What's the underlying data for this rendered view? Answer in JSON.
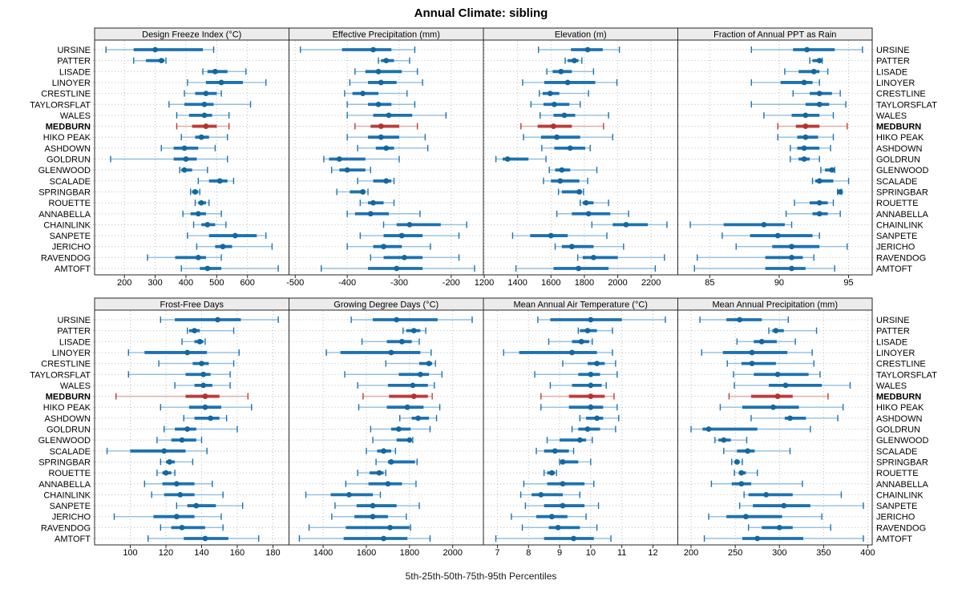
{
  "title": "Annual Climate: sibling",
  "footer": "5th-25th-50th-75th-95th Percentiles",
  "percentiles": [
    5,
    25,
    50,
    75,
    95
  ],
  "highlight_station": "MEDBURN",
  "stations": [
    "URSINE",
    "PATTER",
    "LISADE",
    "LINOYER",
    "CRESTLINE",
    "TAYLORSFLAT",
    "WALES",
    "MEDBURN",
    "HIKO PEAK",
    "ASHDOWN",
    "GOLDRUN",
    "GLENWOOD",
    "SCALADE",
    "SPRINGBAR",
    "ROUETTE",
    "ANNABELLA",
    "CHAINLINK",
    "SANPETE",
    "JERICHO",
    "RAVENDOG",
    "AMTOFT"
  ],
  "colors": {
    "series_blue": "#1D72B0",
    "series_blue_light": "#92BFDF",
    "series_blue_dot": "#14679F",
    "highlight_red": "#BC3C39",
    "highlight_red_light": "#E2A6A4",
    "highlight_red_dot": "#B23230",
    "grid": "#BDBDBD",
    "panel_border": "#262626",
    "header_bg": "#ECECEC",
    "text": "#000000"
  },
  "chart_data": [
    {
      "type": "percentile-dotplot",
      "row": 0,
      "col": 0,
      "title": "Design Freeze Index (°C)",
      "xmin": 103,
      "xmax": 735,
      "ticks": [
        200,
        300,
        400,
        500,
        600
      ],
      "values": [
        [
          140,
          230,
          300,
          455,
          490
        ],
        [
          230,
          270,
          320,
          330,
          335
        ],
        [
          455,
          470,
          495,
          535,
          595
        ],
        [
          405,
          465,
          515,
          585,
          660
        ],
        [
          395,
          430,
          465,
          500,
          515
        ],
        [
          345,
          395,
          460,
          490,
          610
        ],
        [
          370,
          410,
          460,
          485,
          540
        ],
        [
          370,
          420,
          465,
          500,
          540
        ],
        [
          385,
          430,
          450,
          475,
          535
        ],
        [
          320,
          360,
          395,
          440,
          495
        ],
        [
          155,
          360,
          400,
          435,
          535
        ],
        [
          380,
          385,
          395,
          420,
          470
        ],
        [
          440,
          475,
          510,
          535,
          555
        ],
        [
          415,
          420,
          430,
          440,
          445
        ],
        [
          430,
          440,
          450,
          465,
          475
        ],
        [
          390,
          415,
          440,
          465,
          515
        ],
        [
          425,
          450,
          470,
          495,
          530
        ],
        [
          405,
          475,
          560,
          630,
          660
        ],
        [
          435,
          495,
          520,
          550,
          680
        ],
        [
          275,
          365,
          440,
          465,
          515
        ],
        [
          385,
          445,
          470,
          515,
          700
        ]
      ]
    },
    {
      "type": "percentile-dotplot",
      "row": 0,
      "col": 1,
      "title": "Effective Precipitation (mm)",
      "xmin": -512,
      "xmax": -138,
      "ticks": [
        -500,
        -400,
        -300,
        -200
      ],
      "values": [
        [
          -490,
          -410,
          -350,
          -315,
          -270
        ],
        [
          -340,
          -335,
          -325,
          -310,
          -280
        ],
        [
          -385,
          -365,
          -340,
          -295,
          -265
        ],
        [
          -395,
          -360,
          -335,
          -305,
          -255
        ],
        [
          -405,
          -390,
          -370,
          -340,
          -285
        ],
        [
          -400,
          -360,
          -340,
          -315,
          -270
        ],
        [
          -400,
          -350,
          -320,
          -275,
          -210
        ],
        [
          -385,
          -355,
          -335,
          -300,
          -265
        ],
        [
          -400,
          -360,
          -335,
          -300,
          -250
        ],
        [
          -380,
          -345,
          -325,
          -310,
          -245
        ],
        [
          -445,
          -435,
          -415,
          -365,
          -300
        ],
        [
          -430,
          -415,
          -400,
          -365,
          -355
        ],
        [
          -380,
          -350,
          -325,
          -315,
          -310
        ],
        [
          -420,
          -395,
          -370,
          -365,
          -360
        ],
        [
          -375,
          -360,
          -350,
          -330,
          -310
        ],
        [
          -400,
          -385,
          -355,
          -320,
          -260
        ],
        [
          -330,
          -305,
          -280,
          -220,
          -170
        ],
        [
          -375,
          -330,
          -295,
          -255,
          -185
        ],
        [
          -400,
          -350,
          -330,
          -295,
          -240
        ],
        [
          -355,
          -330,
          -290,
          -255,
          -185
        ],
        [
          -450,
          -360,
          -305,
          -255,
          -155
        ]
      ]
    },
    {
      "type": "percentile-dotplot",
      "row": 0,
      "col": 2,
      "title": "Elevation (m)",
      "xmin": 1195,
      "xmax": 2360,
      "ticks": [
        1200,
        1400,
        1600,
        1800,
        2000,
        2200
      ],
      "values": [
        [
          1525,
          1720,
          1820,
          1910,
          2010
        ],
        [
          1685,
          1700,
          1740,
          1765,
          1785
        ],
        [
          1575,
          1610,
          1660,
          1725,
          1855
        ],
        [
          1430,
          1560,
          1700,
          1865,
          1995
        ],
        [
          1530,
          1550,
          1595,
          1650,
          1825
        ],
        [
          1480,
          1555,
          1620,
          1710,
          1775
        ],
        [
          1535,
          1615,
          1680,
          1745,
          1945
        ],
        [
          1420,
          1520,
          1615,
          1725,
          1915
        ],
        [
          1435,
          1540,
          1635,
          1775,
          1970
        ],
        [
          1545,
          1620,
          1715,
          1805,
          1835
        ],
        [
          1270,
          1310,
          1340,
          1465,
          1570
        ],
        [
          1590,
          1625,
          1665,
          1715,
          1875
        ],
        [
          1555,
          1600,
          1655,
          1770,
          1820
        ],
        [
          1645,
          1665,
          1770,
          1785,
          1795
        ],
        [
          1775,
          1790,
          1810,
          1855,
          1945
        ],
        [
          1635,
          1725,
          1825,
          1955,
          2065
        ],
        [
          1845,
          1970,
          2050,
          2180,
          2295
        ],
        [
          1370,
          1475,
          1600,
          1700,
          1935
        ],
        [
          1625,
          1665,
          1725,
          1855,
          2035
        ],
        [
          1760,
          1790,
          1855,
          2000,
          2280
        ],
        [
          1390,
          1615,
          1765,
          1945,
          2225
        ]
      ]
    },
    {
      "type": "percentile-dotplot",
      "row": 0,
      "col": 3,
      "title": "Fraction of Annual PPT as Rain",
      "xmin": 82.7,
      "xmax": 96.7,
      "ticks": [
        85,
        90,
        95
      ],
      "values": [
        [
          88.0,
          91.0,
          92.0,
          94.0,
          96.0
        ],
        [
          92.2,
          92.4,
          92.9,
          93.0,
          93.1
        ],
        [
          90.4,
          91.4,
          92.5,
          92.9,
          93.5
        ],
        [
          88.0,
          90.1,
          91.8,
          92.4,
          92.9
        ],
        [
          91.0,
          92.2,
          92.9,
          93.8,
          94.4
        ],
        [
          88.0,
          91.9,
          92.9,
          93.6,
          94.8
        ],
        [
          88.9,
          90.9,
          91.9,
          92.9,
          93.9
        ],
        [
          89.9,
          91.2,
          91.9,
          92.9,
          94.9
        ],
        [
          89.9,
          91.3,
          91.9,
          92.8,
          93.9
        ],
        [
          90.8,
          91.3,
          91.8,
          92.9,
          93.7
        ],
        [
          90.8,
          91.4,
          91.8,
          92.2,
          92.9
        ],
        [
          93.0,
          93.3,
          93.8,
          93.9,
          94.0
        ],
        [
          92.4,
          92.6,
          92.9,
          93.9,
          95.0
        ],
        [
          94.2,
          94.3,
          94.4,
          94.5,
          94.5
        ],
        [
          91.1,
          92.2,
          92.9,
          93.5,
          93.9
        ],
        [
          90.5,
          92.4,
          92.9,
          93.5,
          94.4
        ],
        [
          83.6,
          86.0,
          88.9,
          90.4,
          90.9
        ],
        [
          85.9,
          87.9,
          89.9,
          92.4,
          92.9
        ],
        [
          86.9,
          89.5,
          90.9,
          92.9,
          94.9
        ],
        [
          84.1,
          89.0,
          90.9,
          91.7,
          92.5
        ],
        [
          83.9,
          89.0,
          90.9,
          91.9,
          94.0
        ]
      ]
    },
    {
      "type": "percentile-dotplot",
      "row": 1,
      "col": 0,
      "title": "Frost-Free Days",
      "xmin": 80,
      "xmax": 189,
      "ticks": [
        100,
        120,
        140,
        160,
        180
      ],
      "values": [
        [
          117,
          125,
          149,
          162,
          183
        ],
        [
          132,
          133,
          136,
          139,
          158
        ],
        [
          129,
          136,
          139,
          141,
          142
        ],
        [
          99,
          108,
          132,
          143,
          161
        ],
        [
          116,
          135,
          140,
          144,
          158
        ],
        [
          99,
          131,
          141,
          145,
          156
        ],
        [
          125,
          136,
          141,
          146,
          156
        ],
        [
          92,
          131,
          142,
          150,
          166
        ],
        [
          117,
          133,
          142,
          151,
          168
        ],
        [
          130,
          136,
          145,
          150,
          154
        ],
        [
          119,
          125,
          132,
          137,
          160
        ],
        [
          115,
          123,
          129,
          137,
          140
        ],
        [
          87,
          100,
          119,
          131,
          143
        ],
        [
          117,
          120,
          122,
          125,
          135
        ],
        [
          115,
          118,
          120,
          123,
          125
        ],
        [
          108,
          118,
          126,
          136,
          146
        ],
        [
          112,
          119,
          128,
          136,
          152
        ],
        [
          126,
          132,
          137,
          148,
          163
        ],
        [
          91,
          113,
          126,
          136,
          151
        ],
        [
          117,
          123,
          129,
          142,
          152
        ],
        [
          110,
          130,
          142,
          155,
          172
        ]
      ]
    },
    {
      "type": "percentile-dotplot",
      "row": 1,
      "col": 1,
      "title": "Growing Degree Days (°C)",
      "xmin": 1242,
      "xmax": 2142,
      "ticks": [
        1400,
        1600,
        1800,
        2000
      ],
      "values": [
        [
          1530,
          1630,
          1740,
          1930,
          2090
        ],
        [
          1770,
          1785,
          1820,
          1850,
          1875
        ],
        [
          1580,
          1695,
          1765,
          1810,
          1845
        ],
        [
          1415,
          1480,
          1715,
          1850,
          1900
        ],
        [
          1690,
          1845,
          1890,
          1905,
          1920
        ],
        [
          1500,
          1750,
          1850,
          1890,
          1950
        ],
        [
          1560,
          1700,
          1815,
          1885,
          1915
        ],
        [
          1585,
          1705,
          1820,
          1885,
          1905
        ],
        [
          1565,
          1695,
          1790,
          1865,
          1940
        ],
        [
          1755,
          1810,
          1840,
          1890,
          1925
        ],
        [
          1620,
          1715,
          1750,
          1805,
          1895
        ],
        [
          1630,
          1740,
          1800,
          1810,
          1815
        ],
        [
          1600,
          1650,
          1680,
          1715,
          1735
        ],
        [
          1645,
          1700,
          1715,
          1825,
          1835
        ],
        [
          1560,
          1615,
          1660,
          1680,
          1690
        ],
        [
          1505,
          1610,
          1700,
          1765,
          1830
        ],
        [
          1320,
          1435,
          1520,
          1630,
          1665
        ],
        [
          1455,
          1555,
          1630,
          1740,
          1845
        ],
        [
          1440,
          1545,
          1630,
          1700,
          1785
        ],
        [
          1335,
          1505,
          1710,
          1800,
          1805
        ],
        [
          1290,
          1495,
          1680,
          1790,
          1895
        ]
      ]
    },
    {
      "type": "percentile-dotplot",
      "row": 1,
      "col": 2,
      "title": "Mean Annual Air Temperature (°C)",
      "xmin": 6.55,
      "xmax": 12.8,
      "ticks": [
        7,
        8,
        9,
        10,
        11,
        12
      ],
      "values": [
        [
          8.3,
          8.7,
          10.0,
          11.0,
          12.4
        ],
        [
          9.6,
          9.65,
          9.9,
          10.2,
          10.7
        ],
        [
          8.65,
          9.4,
          9.7,
          9.95,
          10.05
        ],
        [
          7.2,
          7.7,
          9.4,
          10.2,
          10.7
        ],
        [
          9.1,
          9.9,
          10.2,
          10.45,
          10.8
        ],
        [
          8.2,
          9.6,
          10.0,
          10.3,
          10.85
        ],
        [
          8.7,
          9.4,
          10.0,
          10.35,
          10.5
        ],
        [
          8.4,
          9.3,
          10.0,
          10.45,
          10.75
        ],
        [
          8.4,
          9.3,
          10.0,
          10.4,
          10.85
        ],
        [
          9.65,
          9.85,
          10.2,
          10.4,
          10.9
        ],
        [
          9.4,
          9.6,
          9.9,
          10.3,
          10.8
        ],
        [
          8.6,
          9.0,
          9.65,
          9.85,
          10.05
        ],
        [
          8.25,
          8.5,
          8.85,
          9.3,
          9.45
        ],
        [
          9.0,
          9.05,
          9.1,
          9.6,
          10.0
        ],
        [
          8.5,
          8.6,
          8.75,
          8.85,
          8.9
        ],
        [
          7.85,
          8.6,
          9.1,
          9.8,
          10.1
        ],
        [
          7.75,
          8.1,
          8.4,
          9.1,
          9.65
        ],
        [
          7.9,
          8.5,
          9.1,
          9.8,
          10.25
        ],
        [
          7.45,
          8.25,
          8.75,
          9.25,
          9.85
        ],
        [
          7.8,
          8.65,
          8.95,
          9.65,
          10.2
        ],
        [
          6.95,
          8.5,
          9.45,
          10.1,
          10.65
        ]
      ]
    },
    {
      "type": "percentile-dotplot",
      "row": 1,
      "col": 3,
      "title": "Mean Annual Precipitation (mm)",
      "xmin": 185,
      "xmax": 405,
      "ticks": [
        200,
        250,
        300,
        350,
        400
      ],
      "values": [
        [
          210,
          240,
          255,
          280,
          310
        ],
        [
          288,
          292,
          296,
          305,
          342
        ],
        [
          252,
          271,
          280,
          297,
          318
        ],
        [
          212,
          236,
          269,
          309,
          337
        ],
        [
          241,
          257,
          269,
          296,
          339
        ],
        [
          248,
          271,
          298,
          333,
          346
        ],
        [
          249,
          288,
          307,
          348,
          380
        ],
        [
          243,
          268,
          298,
          315,
          355
        ],
        [
          233,
          258,
          293,
          322,
          372
        ],
        [
          268,
          306,
          312,
          330,
          366
        ],
        [
          200,
          213,
          220,
          275,
          335
        ],
        [
          227,
          231,
          237,
          245,
          263
        ],
        [
          237,
          252,
          264,
          272,
          312
        ],
        [
          246,
          249,
          252,
          255,
          258
        ],
        [
          249,
          254,
          257,
          262,
          275
        ],
        [
          223,
          246,
          257,
          268,
          326
        ],
        [
          260,
          265,
          285,
          315,
          370
        ],
        [
          255,
          270,
          305,
          335,
          395
        ],
        [
          220,
          240,
          262,
          303,
          348
        ],
        [
          265,
          280,
          300,
          315,
          358
        ],
        [
          215,
          258,
          275,
          327,
          395
        ]
      ]
    }
  ]
}
